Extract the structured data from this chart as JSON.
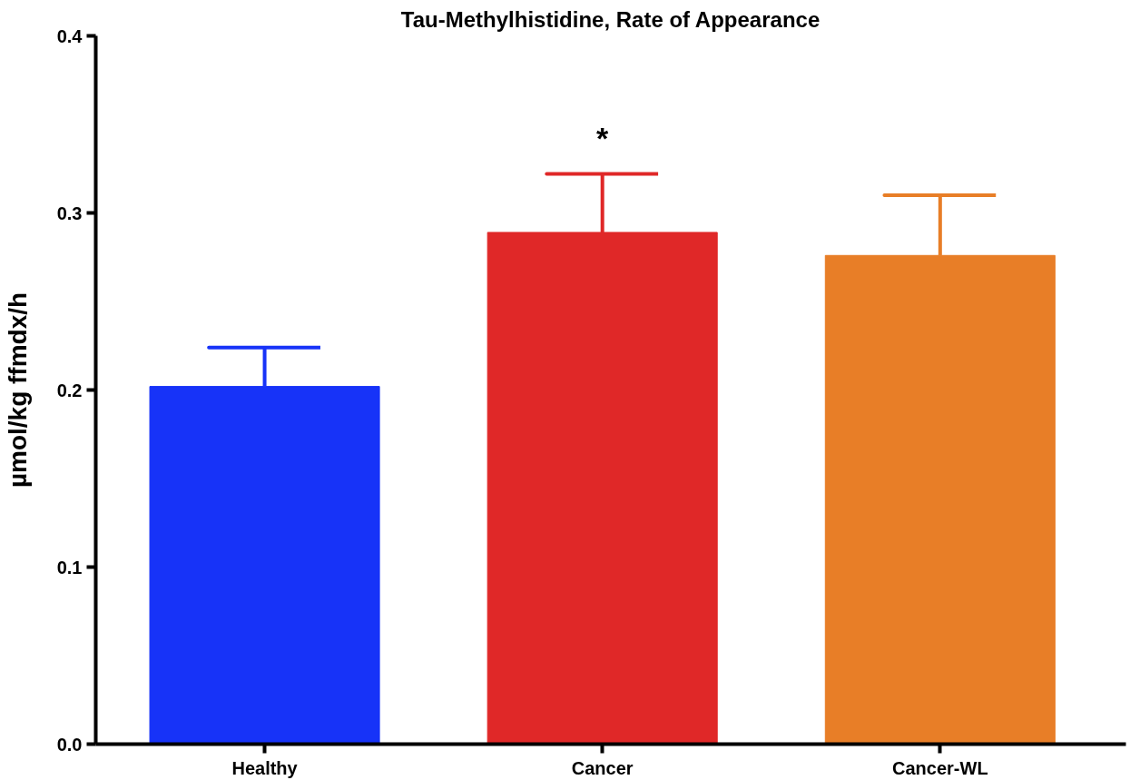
{
  "chart_data": {
    "type": "bar",
    "title": "Tau-Methylhistidine, Rate of Appearance",
    "ylabel": "µmol/kg ffmdx/h",
    "categories": [
      "Healthy",
      "Cancer",
      "Cancer-WL"
    ],
    "values": [
      0.202,
      0.289,
      0.276
    ],
    "colors": [
      "#1733f8",
      "#e02828",
      "#e87e27"
    ],
    "errors": [
      [
        0.202,
        0.224
      ],
      [
        0.289,
        0.322
      ],
      [
        0.276,
        0.31
      ]
    ],
    "ylim": [
      0,
      0.4
    ],
    "yticks": [
      {
        "value": 0,
        "label": "0.0"
      },
      {
        "value": 0.1,
        "label": "0.1"
      },
      {
        "value": 0.2,
        "label": "0.2"
      },
      {
        "value": 0.3,
        "label": "0.3"
      },
      {
        "value": 0.4,
        "label": "0.4"
      }
    ],
    "annotations": [
      "*"
    ],
    "grid": false
  }
}
